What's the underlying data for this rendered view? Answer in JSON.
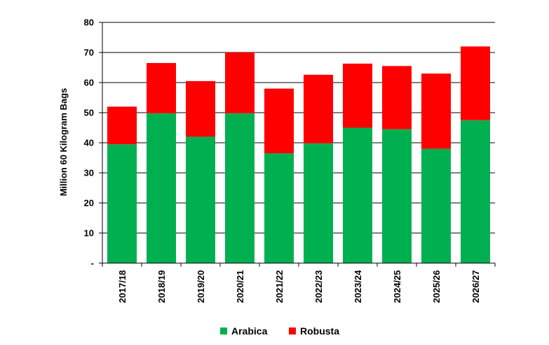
{
  "chart_data": {
    "type": "bar",
    "stacked": true,
    "title": "",
    "xlabel": "",
    "ylabel": "Million 60 Kilogram Bags",
    "ylim": [
      0,
      80
    ],
    "yticks": [
      0,
      10,
      20,
      30,
      40,
      50,
      60,
      70,
      80
    ],
    "ytick_labels": [
      "-",
      "10",
      "20",
      "30",
      "40",
      "50",
      "60",
      "70",
      "80"
    ],
    "grid": true,
    "legend_position": "bottom",
    "categories": [
      "2017/18",
      "2018/19",
      "2019/20",
      "2020/21",
      "2021/22",
      "2022/23",
      "2023/24",
      "2024/25",
      "2025/26",
      "2026/27"
    ],
    "series": [
      {
        "name": "Arabica",
        "color": "#00b050",
        "values": [
          39.5,
          49.8,
          42.0,
          49.8,
          36.5,
          39.8,
          45.0,
          44.5,
          38.0,
          47.5
        ]
      },
      {
        "name": "Robusta",
        "color": "#ff0000",
        "values": [
          12.5,
          16.7,
          18.5,
          20.2,
          21.5,
          22.8,
          21.3,
          21.0,
          25.0,
          24.5
        ]
      }
    ]
  }
}
